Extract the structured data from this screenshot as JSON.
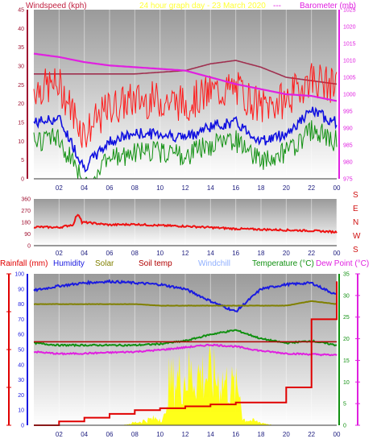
{
  "colors": {
    "wind_speed": "#ff1a1a",
    "wind_gust": "#b00000",
    "wind_avg": "#1010e0",
    "wind_green": "#109010",
    "barometer": "#e020e0",
    "barometer_hist": "#a03050",
    "direction": "#ee1111",
    "rain": "#e00000",
    "humidity": "#1a1ae0",
    "solar": "#808000",
    "solar_fill": "#ffff00",
    "soil": "#b00000",
    "windchill": "#90b0ff",
    "temperature": "#109010",
    "dewpoint": "#e020e0",
    "axis_left": "#a01030",
    "axis_right": "#e020e0"
  },
  "wind_panel": {
    "title_left": "Windspeed (kph)",
    "title_center": "24 hour graph day - 23 March 2020",
    "title_right": "Barometer (mb)",
    "left_ticks": [
      "0",
      "5",
      "10",
      "15",
      "20",
      "25",
      "30",
      "35",
      "40",
      "45"
    ],
    "right_ticks": [
      "975",
      "980",
      "985",
      "990",
      "995",
      "1000",
      "1005",
      "1010",
      "1015",
      "1020",
      "1025"
    ]
  },
  "dir_panel": {
    "left_ticks": [
      "0",
      "90",
      "180",
      "270",
      "360"
    ],
    "compass": [
      "S",
      "E",
      "N",
      "W",
      "S"
    ]
  },
  "bottom_panel": {
    "legend": {
      "rainfall": "Rainfall (mm)",
      "humidity": "Humidity",
      "solar": "Solar",
      "soil": "Soil temp",
      "windchill": "Windchill",
      "temperature": "Temperature (°C)",
      "dewpoint": "Dew Point (°C)"
    },
    "left_ticks": [
      "0",
      "10",
      "20",
      "30",
      "40",
      "50",
      "60",
      "70",
      "80",
      "90",
      "100"
    ],
    "right_ticks": [
      "0",
      "5",
      "10",
      "15",
      "20",
      "25",
      "30",
      "35"
    ]
  },
  "x_ticks": [
    "02",
    "04",
    "06",
    "08",
    "10",
    "12",
    "14",
    "16",
    "18",
    "20",
    "22",
    "00"
  ],
  "chart_data": [
    {
      "type": "line",
      "title": "24 hour graph day - 23 March 2020",
      "ylabel": "Windspeed (kph)",
      "ylabel_right": "Barometer (mb)",
      "ylim": [
        0,
        45
      ],
      "ylim_right": [
        975,
        1025
      ],
      "x": [
        "00",
        "02",
        "04",
        "06",
        "08",
        "10",
        "12",
        "14",
        "16",
        "18",
        "20",
        "22",
        "00"
      ],
      "series": [
        {
          "name": "Windspeed (kph)",
          "values": [
            15,
            16,
            3,
            10,
            12,
            12,
            11,
            14,
            15,
            10,
            12,
            18,
            15
          ]
        },
        {
          "name": "Barometer (mb)",
          "values": [
            1012,
            1011,
            1009.5,
            1008.5,
            1008,
            1007.5,
            1007,
            1005,
            1003,
            1001.5,
            1000,
            999.5,
            998
          ]
        }
      ]
    },
    {
      "type": "line",
      "ylim": [
        0,
        360
      ],
      "x": [
        "00",
        "02",
        "04",
        "06",
        "08",
        "10",
        "12",
        "14",
        "16",
        "18",
        "20",
        "22",
        "00"
      ],
      "series": [
        {
          "values": [
            145,
            140,
            180,
            160,
            165,
            155,
            150,
            140,
            130,
            125,
            120,
            115,
            105
          ]
        }
      ]
    },
    {
      "type": "line",
      "legend": [
        "Rainfall (mm)",
        "Humidity",
        "Solar",
        "Soil temp",
        "Windchill",
        "Temperature (°C)",
        "Dew Point (°C)"
      ],
      "ylim": [
        0,
        100
      ],
      "ylim_right": [
        0,
        35
      ],
      "x": [
        "00",
        "02",
        "04",
        "06",
        "08",
        "10",
        "12",
        "14",
        "16",
        "18",
        "20",
        "22",
        "00"
      ],
      "series": [
        {
          "name": "Humidity",
          "values": [
            89,
            92,
            94,
            95,
            94,
            93,
            90,
            82,
            75,
            90,
            93,
            94,
            86
          ]
        },
        {
          "name": "Solar",
          "values": [
            80,
            80,
            80,
            80,
            80,
            79,
            79,
            79,
            79,
            79,
            79,
            82,
            80
          ]
        },
        {
          "name": "Temperature (°C)",
          "values": [
            19,
            18.5,
            18.5,
            18.5,
            18.5,
            18.8,
            19.5,
            21,
            22,
            20,
            19,
            19.5,
            18.5
          ]
        },
        {
          "name": "Dew Point (°C)",
          "values": [
            17,
            16.5,
            16.6,
            16.8,
            17,
            17.4,
            18,
            18.6,
            18.2,
            17.2,
            16.6,
            16.4,
            16.2
          ]
        },
        {
          "name": "Rainfall (mm)",
          "values": [
            0,
            1,
            2,
            3,
            4,
            4.5,
            5,
            5.5,
            6,
            6,
            10,
            28,
            38
          ]
        }
      ]
    }
  ]
}
